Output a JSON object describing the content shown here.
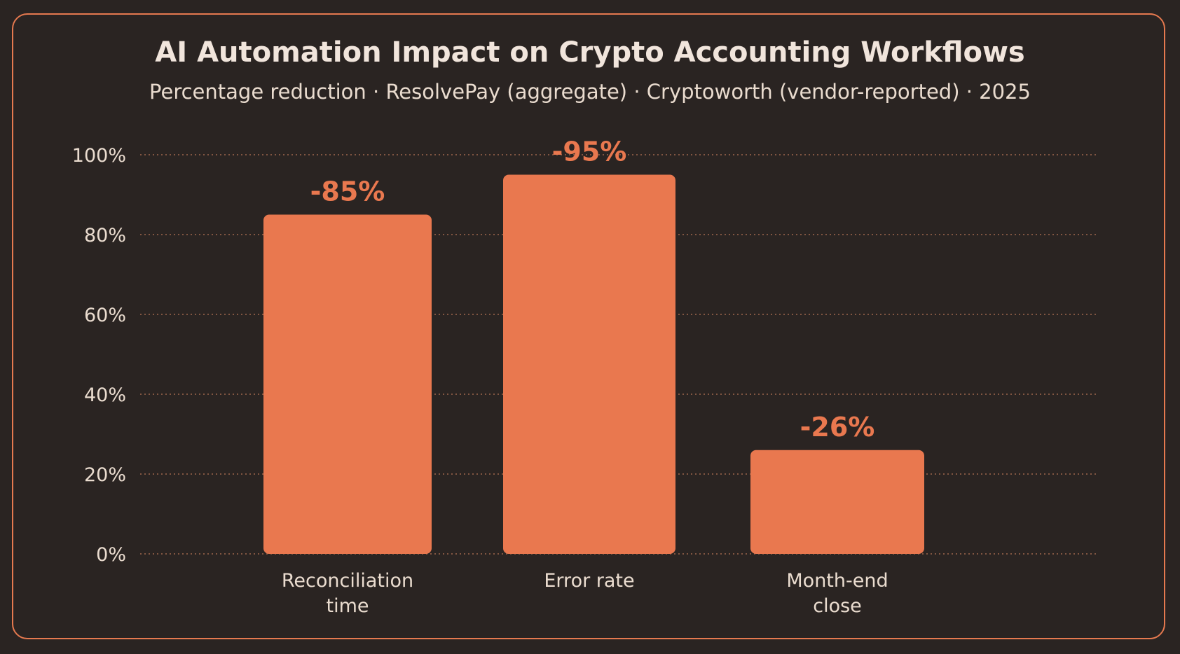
{
  "chart_data": {
    "type": "bar",
    "title": "AI Automation Impact on Crypto Accounting Workflows",
    "subtitle": "Percentage reduction · ResolvePay (aggregate) · Cryptoworth (vendor-reported) · 2025",
    "categories": [
      "Reconciliation time",
      "Error rate",
      "Month-end close"
    ],
    "category_lines": [
      [
        "Reconciliation",
        "time"
      ],
      [
        "Error rate"
      ],
      [
        "Month-end",
        "close"
      ]
    ],
    "values": [
      85,
      95,
      26
    ],
    "data_labels": [
      "-85%",
      "-95%",
      "-26%"
    ],
    "y_ticks": [
      0,
      20,
      40,
      60,
      80,
      100
    ],
    "y_tick_labels": [
      "0%",
      "20%",
      "40%",
      "60%",
      "80%",
      "100%"
    ],
    "ylim": [
      0,
      100
    ],
    "xlabel": "",
    "ylabel": "",
    "grid": true,
    "gridline_style": "dotted",
    "legend": "none"
  },
  "colors": {
    "background": "#2a2422",
    "border": "#e5794f",
    "bar": "#e9784f",
    "text": "#eadccf",
    "grid": "#a0664c"
  }
}
